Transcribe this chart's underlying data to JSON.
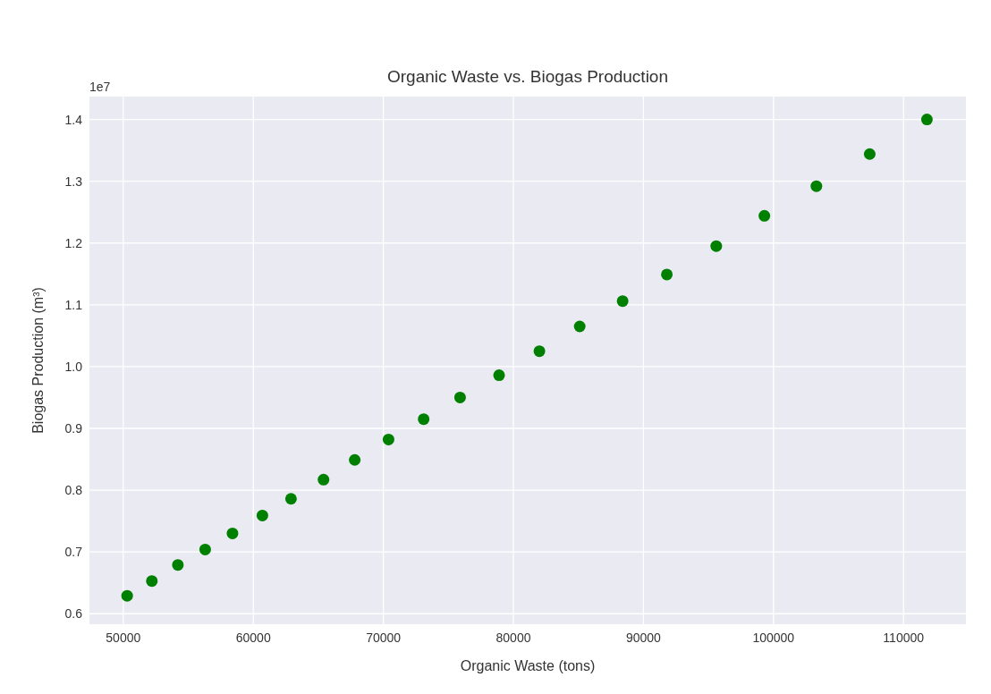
{
  "chart_data": {
    "type": "scatter",
    "title": "Organic Waste vs. Biogas Production",
    "xlabel": "Organic Waste (tons)",
    "ylabel": "Biogas Production (m³)",
    "annotations": [
      "1e7"
    ],
    "x": [
      50300,
      52200,
      54200,
      56300,
      58400,
      60700,
      62900,
      65400,
      67800,
      70400,
      73100,
      75900,
      78900,
      82000,
      85100,
      88400,
      91800,
      95600,
      99300,
      103300,
      107400,
      111800
    ],
    "series": [
      {
        "color": "#008000",
        "values": [
          0.629,
          0.653,
          0.679,
          0.704,
          0.73,
          0.759,
          0.786,
          0.817,
          0.849,
          0.882,
          0.915,
          0.95,
          0.986,
          1.025,
          1.065,
          1.106,
          1.149,
          1.195,
          1.244,
          1.292,
          1.344,
          1.4
        ]
      }
    ],
    "xlim": [
      47400,
      114800
    ],
    "ylim": [
      0.583,
      1.437
    ],
    "xticks": [
      50000,
      60000,
      70000,
      80000,
      90000,
      100000,
      110000
    ],
    "yticks": [
      {
        "value": 0.6,
        "label": "0.6"
      },
      {
        "value": 0.7,
        "label": "0.7"
      },
      {
        "value": 0.8,
        "label": "0.8"
      },
      {
        "value": 0.9,
        "label": "0.9"
      },
      {
        "value": 1.0,
        "label": "1.0"
      },
      {
        "value": 1.1,
        "label": "1.1"
      },
      {
        "value": 1.2,
        "label": "1.2"
      },
      {
        "value": 1.3,
        "label": "1.3"
      },
      {
        "value": 1.4,
        "label": "1.4"
      }
    ],
    "grid": true,
    "marker": "circle"
  }
}
